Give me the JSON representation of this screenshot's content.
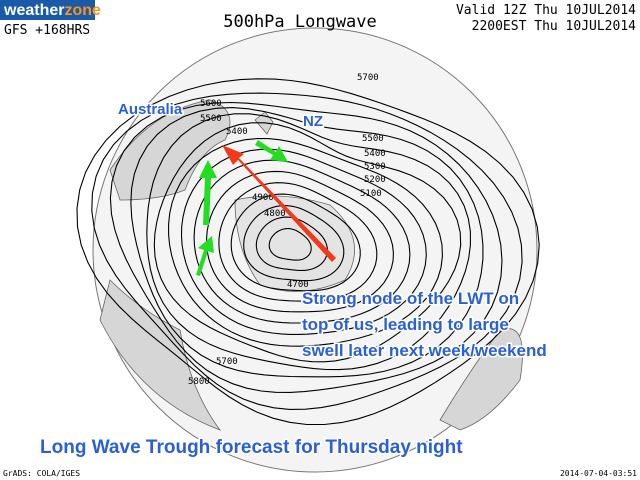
{
  "header": {
    "logo_main": "weather",
    "logo_accent": "zone",
    "model": "GFS +168HRS",
    "title": "500hPa Longwave",
    "valid": "Valid 12Z Thu 10JUL2014",
    "local": "2200EST Thu 10JUL2014"
  },
  "regions": [
    "Australia",
    "NZ"
  ],
  "contour_labels": [
    5700,
    5600,
    5500,
    5400,
    5500,
    5400,
    5300,
    5200,
    5100,
    4900,
    4800,
    4700,
    5700,
    5800
  ],
  "annotation": {
    "lines": [
      "Strong node of the LWT on",
      "top of us, leading to large",
      "swell later next week/weekend"
    ]
  },
  "caption": "Long Wave Trough forecast for Thursday night",
  "footer": {
    "left": "GrADS: COLA/IGES",
    "right": "2014-07-04-03:51"
  }
}
